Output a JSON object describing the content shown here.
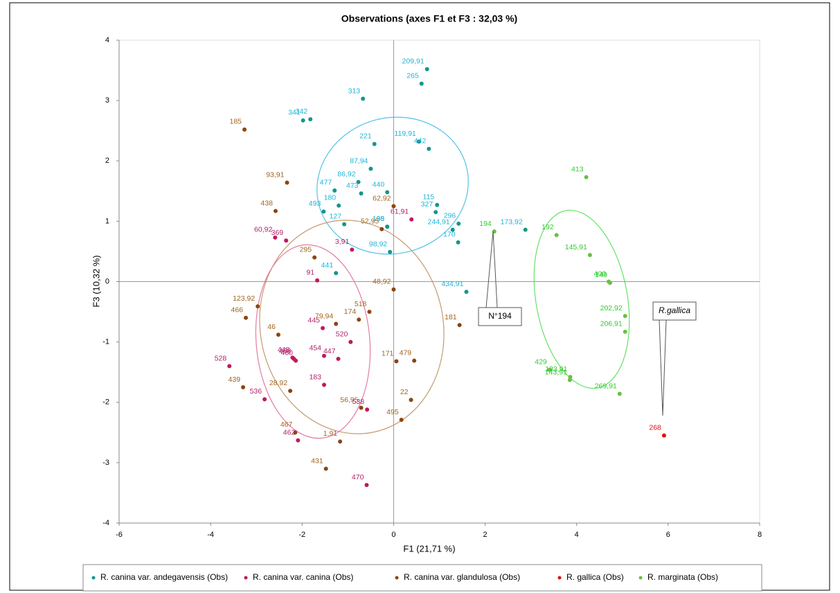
{
  "chart_data": {
    "type": "scatter",
    "title": "Observations (axes F1 et F3 : 32,03 %)",
    "x_label": "F1 (21,71 %)",
    "y_label": "F3 (10,32 %)",
    "xlim": [
      -6,
      8
    ],
    "ylim": [
      -4,
      4
    ],
    "xticks": [
      -6,
      -4,
      -2,
      0,
      2,
      4,
      6,
      8
    ],
    "yticks": [
      -4,
      -3,
      -2,
      -1,
      0,
      1,
      2,
      3,
      4
    ],
    "annotations": [
      "N°194",
      "R.gallica"
    ],
    "series": [
      {
        "name": "R. canina var. andegavensis (Obs)",
        "color": "#14968c",
        "label_color": "#1fb4d8",
        "labels": [
          "209,91",
          "265",
          "313",
          "341",
          "342",
          "221",
          "119,91",
          "442",
          "87,94",
          "86,92",
          "477",
          "473",
          "440",
          "493",
          "98,92",
          "98",
          "180",
          "127",
          "115",
          "327",
          "296",
          "244,91",
          "170",
          "135",
          "441",
          "434,91",
          "173,92"
        ],
        "x": [
          0.73,
          0.61,
          -0.67,
          -1.98,
          -1.82,
          -0.42,
          0.55,
          0.77,
          -0.5,
          -0.77,
          -1.29,
          -0.71,
          -0.14,
          -1.53,
          -0.08,
          -0.14,
          -1.2,
          -1.08,
          0.95,
          0.92,
          1.42,
          1.29,
          1.41,
          -0.14,
          -1.26,
          1.59,
          2.88
        ],
        "values": [
          3.52,
          3.28,
          3.03,
          2.67,
          2.69,
          2.28,
          2.32,
          2.2,
          1.87,
          1.65,
          1.51,
          1.46,
          1.48,
          1.16,
          0.49,
          0.91,
          1.26,
          0.95,
          1.27,
          1.15,
          0.96,
          0.86,
          0.65,
          0.91,
          0.14,
          -0.17,
          0.86
        ]
      },
      {
        "name": "R. canina var. canina  (Obs)",
        "color": "#c0185e",
        "label_color": "#b0226a",
        "labels": [
          "60,92",
          "369",
          "61,91",
          "3,91",
          "91",
          "445",
          "520",
          "454",
          "447",
          "448",
          "460",
          "468",
          "528",
          "183",
          "536",
          "538",
          "462",
          "470"
        ],
        "x": [
          -2.59,
          -2.35,
          0.39,
          -0.91,
          -1.67,
          -1.55,
          -0.94,
          -1.52,
          -1.21,
          -2.21,
          -2.14,
          -2.18,
          -3.59,
          -1.52,
          -2.82,
          -0.58,
          -2.09,
          -0.59
        ],
        "values": [
          0.73,
          0.68,
          1.03,
          0.53,
          0.02,
          -0.77,
          -1.0,
          -1.23,
          -1.28,
          -1.26,
          -1.31,
          -1.28,
          -1.4,
          -1.71,
          -1.95,
          -2.12,
          -2.63,
          -3.37
        ]
      },
      {
        "name": "R. canina var. glandulosa (Obs)",
        "color": "#8b4513",
        "label_color": "#a0651e",
        "labels": [
          "185",
          "93,91",
          "438",
          "62,92",
          "52,95",
          "295",
          "48,92",
          "123,92",
          "466",
          "46",
          "79,94",
          "174",
          "518",
          "181",
          "171",
          "479",
          "439",
          "28,92",
          "22",
          "495",
          "56,95",
          "467",
          "1,91",
          "431"
        ],
        "x": [
          -3.26,
          -2.33,
          -2.58,
          0.0,
          -0.26,
          -1.73,
          0.0,
          -2.97,
          -3.23,
          -2.52,
          -1.26,
          -0.76,
          -0.53,
          1.44,
          0.06,
          0.45,
          -3.29,
          -2.26,
          0.38,
          0.17,
          -0.71,
          -2.15,
          -1.17,
          -1.48
        ],
        "values": [
          2.52,
          1.64,
          1.17,
          1.25,
          0.87,
          0.4,
          -0.13,
          -0.41,
          -0.6,
          -0.88,
          -0.7,
          -0.63,
          -0.5,
          -0.72,
          -1.32,
          -1.31,
          -1.75,
          -1.81,
          -1.96,
          -2.29,
          -2.09,
          -2.5,
          -2.65,
          -3.1
        ]
      },
      {
        "name": "R. gallica (Obs)",
        "color": "#e01010",
        "label_color": "#e01010",
        "labels": [
          "268"
        ],
        "x": [
          5.91
        ],
        "values": [
          -2.55
        ]
      },
      {
        "name": "R. marginata (Obs)",
        "color": "#6abf45",
        "label_color": "#2ecc2e",
        "labels": [
          "194",
          "413",
          "192",
          "145,91",
          "400",
          "149",
          "202,92",
          "206,91",
          "429",
          "133,91",
          "143,91",
          "269,91"
        ],
        "x": [
          2.2,
          4.21,
          3.56,
          4.29,
          4.7,
          4.73,
          5.06,
          5.06,
          3.41,
          3.86,
          3.85,
          4.94
        ],
        "values": [
          0.83,
          1.73,
          0.77,
          0.44,
          0.0,
          -0.02,
          -0.57,
          -0.83,
          -1.46,
          -1.58,
          -1.63,
          -1.86
        ]
      }
    ]
  }
}
